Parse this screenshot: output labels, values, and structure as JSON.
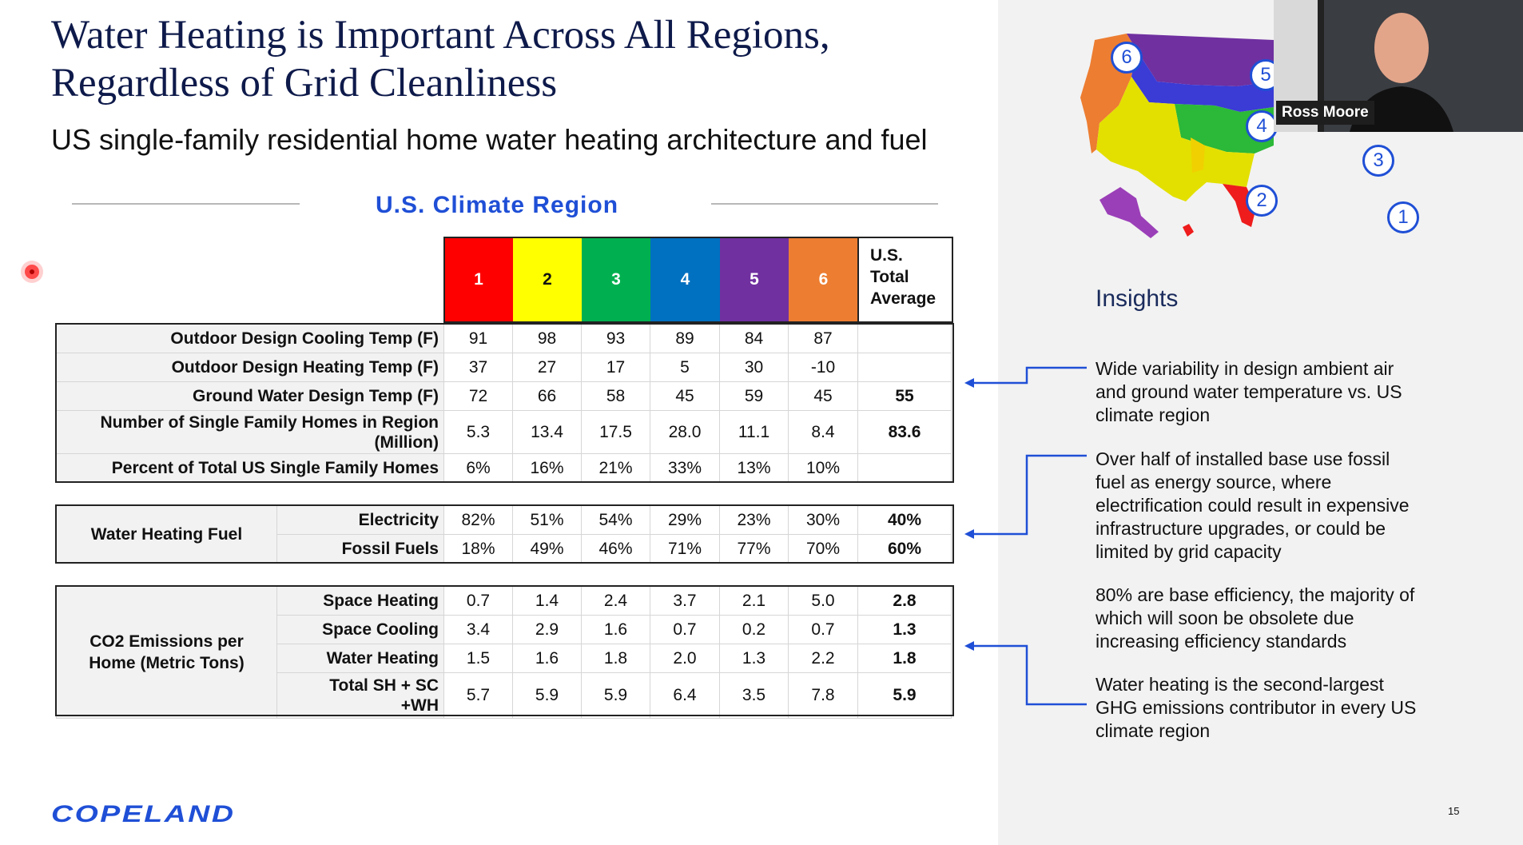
{
  "slide": {
    "title_line1": "Water Heating is Important Across All Regions,",
    "title_line2": "Regardless of Grid Cleanliness",
    "subtitle": "US single-family residential home water heating architecture and fuel",
    "region_heading": "U.S. Climate Region",
    "page_number": "15",
    "logo_text": "COPELAND"
  },
  "colors": {
    "region_1": "#ff0000",
    "region_2": "#ffff00",
    "region_3": "#00b050",
    "region_4": "#0070c0",
    "region_5": "#7030a0",
    "region_6": "#ed7d31",
    "accent_blue": "#1f4fd6"
  },
  "header": {
    "regions": [
      "1",
      "2",
      "3",
      "4",
      "5",
      "6"
    ],
    "avg_line1": "U.S.",
    "avg_line2": "Total",
    "avg_line3": "Average"
  },
  "table1": {
    "rows": [
      {
        "label": "Outdoor Design Cooling Temp (F)",
        "values": [
          "91",
          "98",
          "93",
          "89",
          "84",
          "87"
        ],
        "avg": ""
      },
      {
        "label": "Outdoor Design Heating Temp (F)",
        "values": [
          "37",
          "27",
          "17",
          "5",
          "30",
          "-10"
        ],
        "avg": ""
      },
      {
        "label": "Ground Water Design Temp (F)",
        "values": [
          "72",
          "66",
          "58",
          "45",
          "59",
          "45"
        ],
        "avg": "55"
      },
      {
        "label_line1": "Number of Single Family Homes in Region",
        "label_line2": "(Million)",
        "values": [
          "5.3",
          "13.4",
          "17.5",
          "28.0",
          "11.1",
          "8.4"
        ],
        "avg": "83.6"
      },
      {
        "label": "Percent of Total US Single Family Homes",
        "values": [
          "6%",
          "16%",
          "21%",
          "33%",
          "13%",
          "10%"
        ],
        "avg": ""
      }
    ]
  },
  "table2": {
    "group_label": "Water Heating Fuel",
    "rows": [
      {
        "label": "Electricity",
        "values": [
          "82%",
          "51%",
          "54%",
          "29%",
          "23%",
          "30%"
        ],
        "avg": "40%"
      },
      {
        "label": "Fossil Fuels",
        "values": [
          "18%",
          "49%",
          "46%",
          "71%",
          "77%",
          "70%"
        ],
        "avg": "60%"
      }
    ]
  },
  "table3": {
    "group_line1": "CO2 Emissions per",
    "group_line2": "Home (Metric Tons)",
    "rows": [
      {
        "label": "Space Heating",
        "values": [
          "0.7",
          "1.4",
          "2.4",
          "3.7",
          "2.1",
          "5.0"
        ],
        "avg": "2.8"
      },
      {
        "label": "Space Cooling",
        "values": [
          "3.4",
          "2.9",
          "1.6",
          "0.7",
          "0.2",
          "0.7"
        ],
        "avg": "1.3"
      },
      {
        "label": "Water Heating",
        "values": [
          "1.5",
          "1.6",
          "1.8",
          "2.0",
          "1.3",
          "2.2"
        ],
        "avg": "1.8"
      },
      {
        "label_line1": "Total SH + SC",
        "label_line2": "+WH",
        "values": [
          "5.7",
          "5.9",
          "5.9",
          "6.4",
          "3.5",
          "7.8"
        ],
        "avg": "5.9"
      }
    ]
  },
  "insights": {
    "title": "Insights",
    "items": [
      [
        "Wide variability in design ambient air",
        "and ground water temperature vs. US",
        "climate region"
      ],
      [
        "Over half of installed base use fossil",
        "fuel as energy source, where",
        "electrification could result in expensive",
        "infrastructure upgrades, or could be",
        "limited by grid capacity"
      ],
      [
        "80% are base efficiency, the majority of",
        "which will soon be obsolete due",
        "increasing efficiency standards"
      ],
      [
        "Water heating is the second-largest",
        "GHG emissions contributor in every US",
        "climate region"
      ]
    ]
  },
  "map": {
    "badges": [
      "1",
      "2",
      "3",
      "4",
      "5",
      "6"
    ]
  },
  "video": {
    "participant_name": "Ross Moore"
  }
}
